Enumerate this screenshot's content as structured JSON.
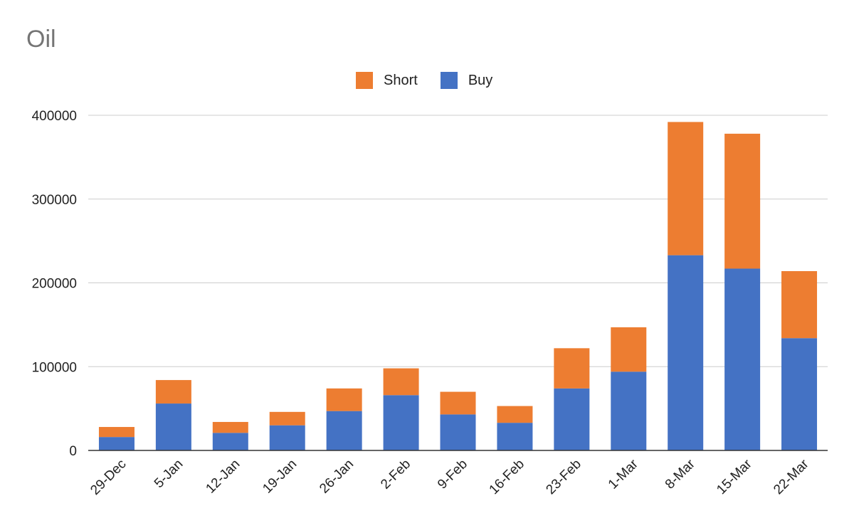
{
  "chart_data": {
    "type": "bar",
    "stacked": true,
    "title": "Oil",
    "xlabel": "",
    "ylabel": "",
    "categories": [
      "29-Dec",
      "5-Jan",
      "12-Jan",
      "19-Jan",
      "26-Jan",
      "2-Feb",
      "9-Feb",
      "16-Feb",
      "23-Feb",
      "1-Mar",
      "8-Mar",
      "15-Mar",
      "22-Mar"
    ],
    "series": [
      {
        "name": "Buy",
        "color": "#4472C4",
        "values": [
          16000,
          56000,
          21000,
          30000,
          47000,
          66000,
          43000,
          33000,
          74000,
          94000,
          233000,
          217000,
          134000
        ]
      },
      {
        "name": "Short",
        "color": "#ED7D31",
        "values": [
          12000,
          28000,
          13000,
          16000,
          27000,
          32000,
          27000,
          20000,
          48000,
          53000,
          159000,
          161000,
          80000
        ]
      }
    ],
    "legend": [
      {
        "name": "Short",
        "color": "#ED7D31"
      },
      {
        "name": "Buy",
        "color": "#4472C4"
      }
    ],
    "ylim": [
      0,
      400000
    ],
    "yticks": [
      "0",
      "100000",
      "200000",
      "300000",
      "400000"
    ],
    "grid": true,
    "legend_position": "top-center"
  }
}
